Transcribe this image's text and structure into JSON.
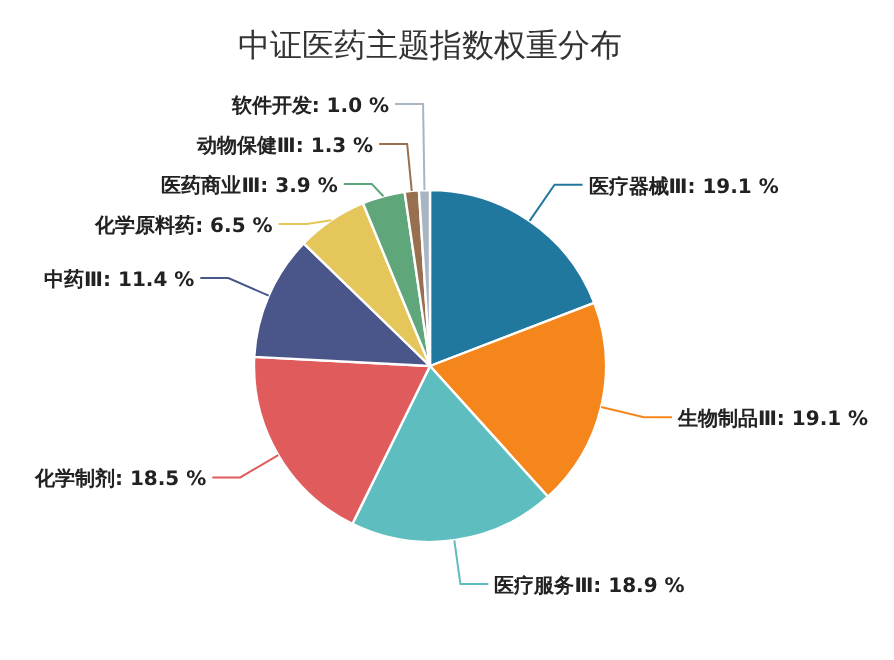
{
  "chart_data": {
    "type": "pie",
    "title": "中证医药主题指数权重分布",
    "categories": [
      "医疗器械Ⅲ",
      "生物制品Ⅲ",
      "医疗服务Ⅲ",
      "化学制剂",
      "中药Ⅲ",
      "化学原料药",
      "医药商业Ⅲ",
      "动物保健Ⅲ",
      "软件开发"
    ],
    "values": [
      19.1,
      19.1,
      18.9,
      18.5,
      11.4,
      6.5,
      3.9,
      1.3,
      1.0
    ],
    "value_labels": [
      "19.1 %",
      "19.1 %",
      "18.9 %",
      "18.5 %",
      "11.4 %",
      "6.5 %",
      "3.9 %",
      "1.3 %",
      "1.0 %"
    ],
    "colors": [
      "#21789f",
      "#f4861b",
      "#5ebdbe",
      "#e05b5c",
      "#4a568a",
      "#e5c65b",
      "#5fa67a",
      "#99704f",
      "#a9b5c3"
    ]
  }
}
